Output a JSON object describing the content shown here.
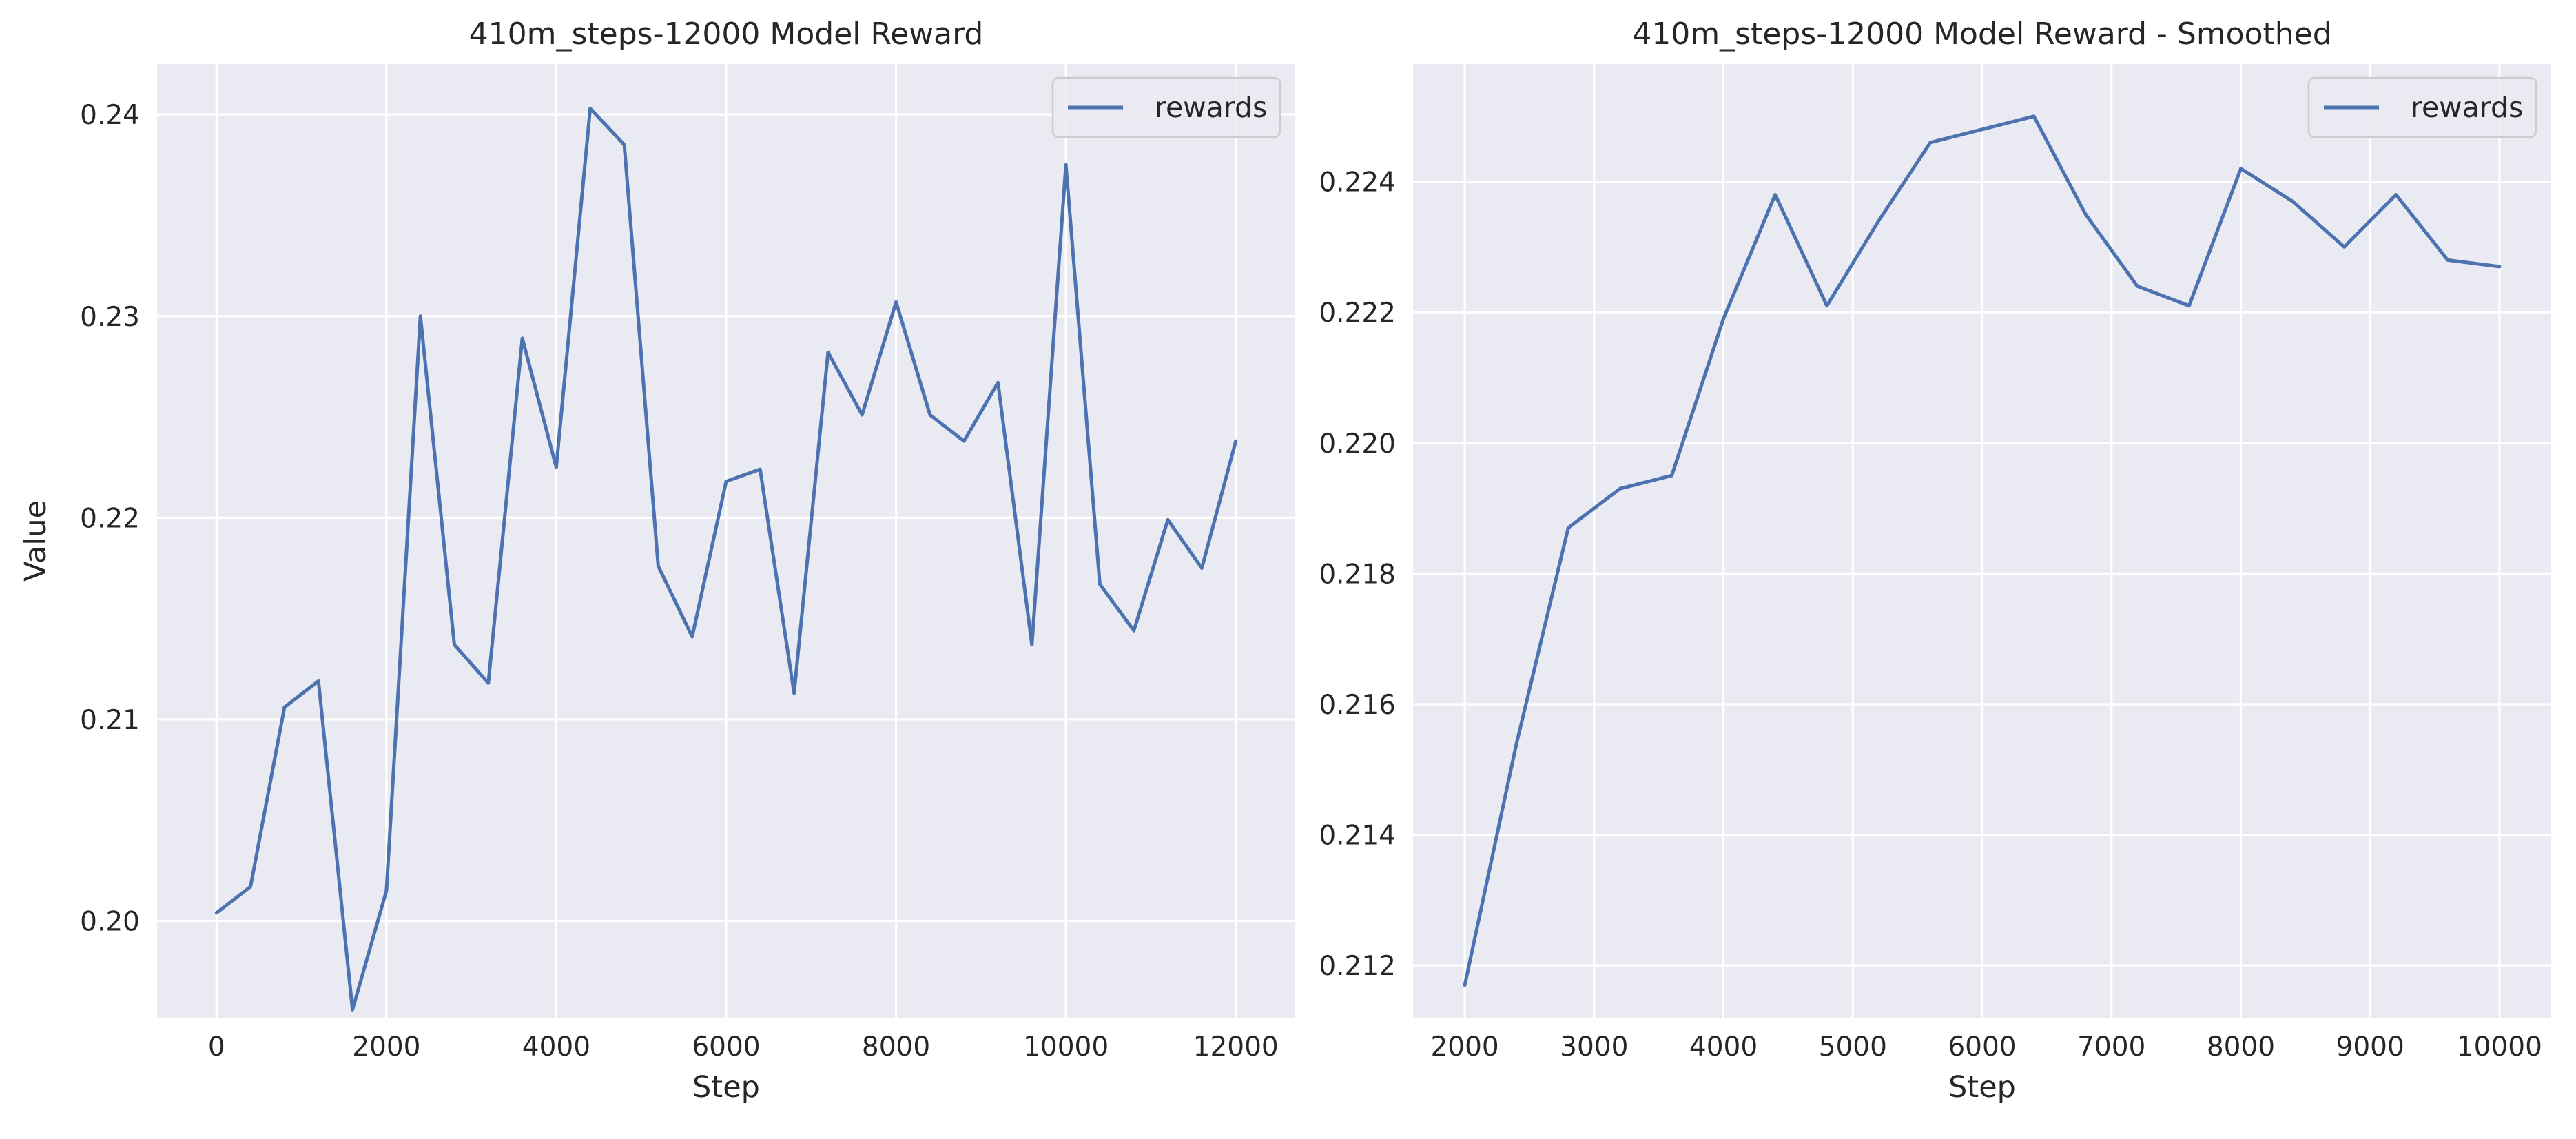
{
  "colors": {
    "background": "#ffffff",
    "plot_background": "#eaeaf2",
    "grid": "#ffffff",
    "series": "#4c72b0",
    "text": "#262626"
  },
  "chart_data": [
    {
      "type": "line",
      "title": "410m_steps-12000 Model Reward",
      "xlabel": "Step",
      "ylabel": "Value",
      "xlim": [
        -700,
        12700
      ],
      "ylim": [
        0.1952,
        0.2425
      ],
      "xticks": [
        0,
        2000,
        4000,
        6000,
        8000,
        10000,
        12000
      ],
      "xtick_labels": [
        "0",
        "2000",
        "4000",
        "6000",
        "8000",
        "10000",
        "12000"
      ],
      "yticks": [
        0.2,
        0.21,
        0.22,
        0.23,
        0.24
      ],
      "ytick_labels": [
        "0.20",
        "0.21",
        "0.22",
        "0.23",
        "0.24"
      ],
      "grid": true,
      "legend": "top-right",
      "series": [
        {
          "name": "rewards",
          "x": [
            0,
            400,
            800,
            1200,
            1600,
            2000,
            2400,
            2800,
            3200,
            3600,
            4000,
            4400,
            4800,
            5200,
            5600,
            6000,
            6400,
            6800,
            7200,
            7600,
            8000,
            8400,
            8800,
            9200,
            9600,
            10000,
            10400,
            10800,
            11200,
            11600,
            12000
          ],
          "y": [
            0.2004,
            0.2017,
            0.2106,
            0.2119,
            0.1956,
            0.2015,
            0.23,
            0.2137,
            0.2118,
            0.2289,
            0.2225,
            0.2403,
            0.2385,
            0.2176,
            0.2141,
            0.2218,
            0.2224,
            0.2113,
            0.2282,
            0.2251,
            0.2307,
            0.2251,
            0.2238,
            0.2267,
            0.2137,
            0.2375,
            0.2167,
            0.2144,
            0.2199,
            0.2175,
            0.2238
          ]
        }
      ]
    },
    {
      "type": "line",
      "title": "410m_steps-12000 Model Reward - Smoothed",
      "xlabel": "Step",
      "ylabel": "",
      "xlim": [
        1600,
        10400
      ],
      "ylim": [
        0.2112,
        0.2258
      ],
      "xticks": [
        2000,
        3000,
        4000,
        5000,
        6000,
        7000,
        8000,
        9000,
        10000
      ],
      "xtick_labels": [
        "2000",
        "3000",
        "4000",
        "5000",
        "6000",
        "7000",
        "8000",
        "9000",
        "10000"
      ],
      "yticks": [
        0.212,
        0.214,
        0.216,
        0.218,
        0.22,
        0.222,
        0.224
      ],
      "ytick_labels": [
        "0.212",
        "0.214",
        "0.216",
        "0.218",
        "0.220",
        "0.222",
        "0.224"
      ],
      "grid": true,
      "legend": "top-right",
      "series": [
        {
          "name": "rewards",
          "x": [
            2000,
            2400,
            2800,
            3200,
            3600,
            4000,
            4400,
            4800,
            5200,
            5600,
            6000,
            6400,
            6800,
            7200,
            7600,
            8000,
            8400,
            8800,
            9200,
            9600,
            10000
          ],
          "y": [
            0.2117,
            0.2154,
            0.2187,
            0.2193,
            0.2195,
            0.2219,
            0.2238,
            0.2221,
            0.2234,
            0.2246,
            0.2248,
            0.225,
            0.2235,
            0.2224,
            0.2221,
            0.2242,
            0.2237,
            0.223,
            0.2238,
            0.2228,
            0.2227
          ]
        }
      ]
    }
  ]
}
